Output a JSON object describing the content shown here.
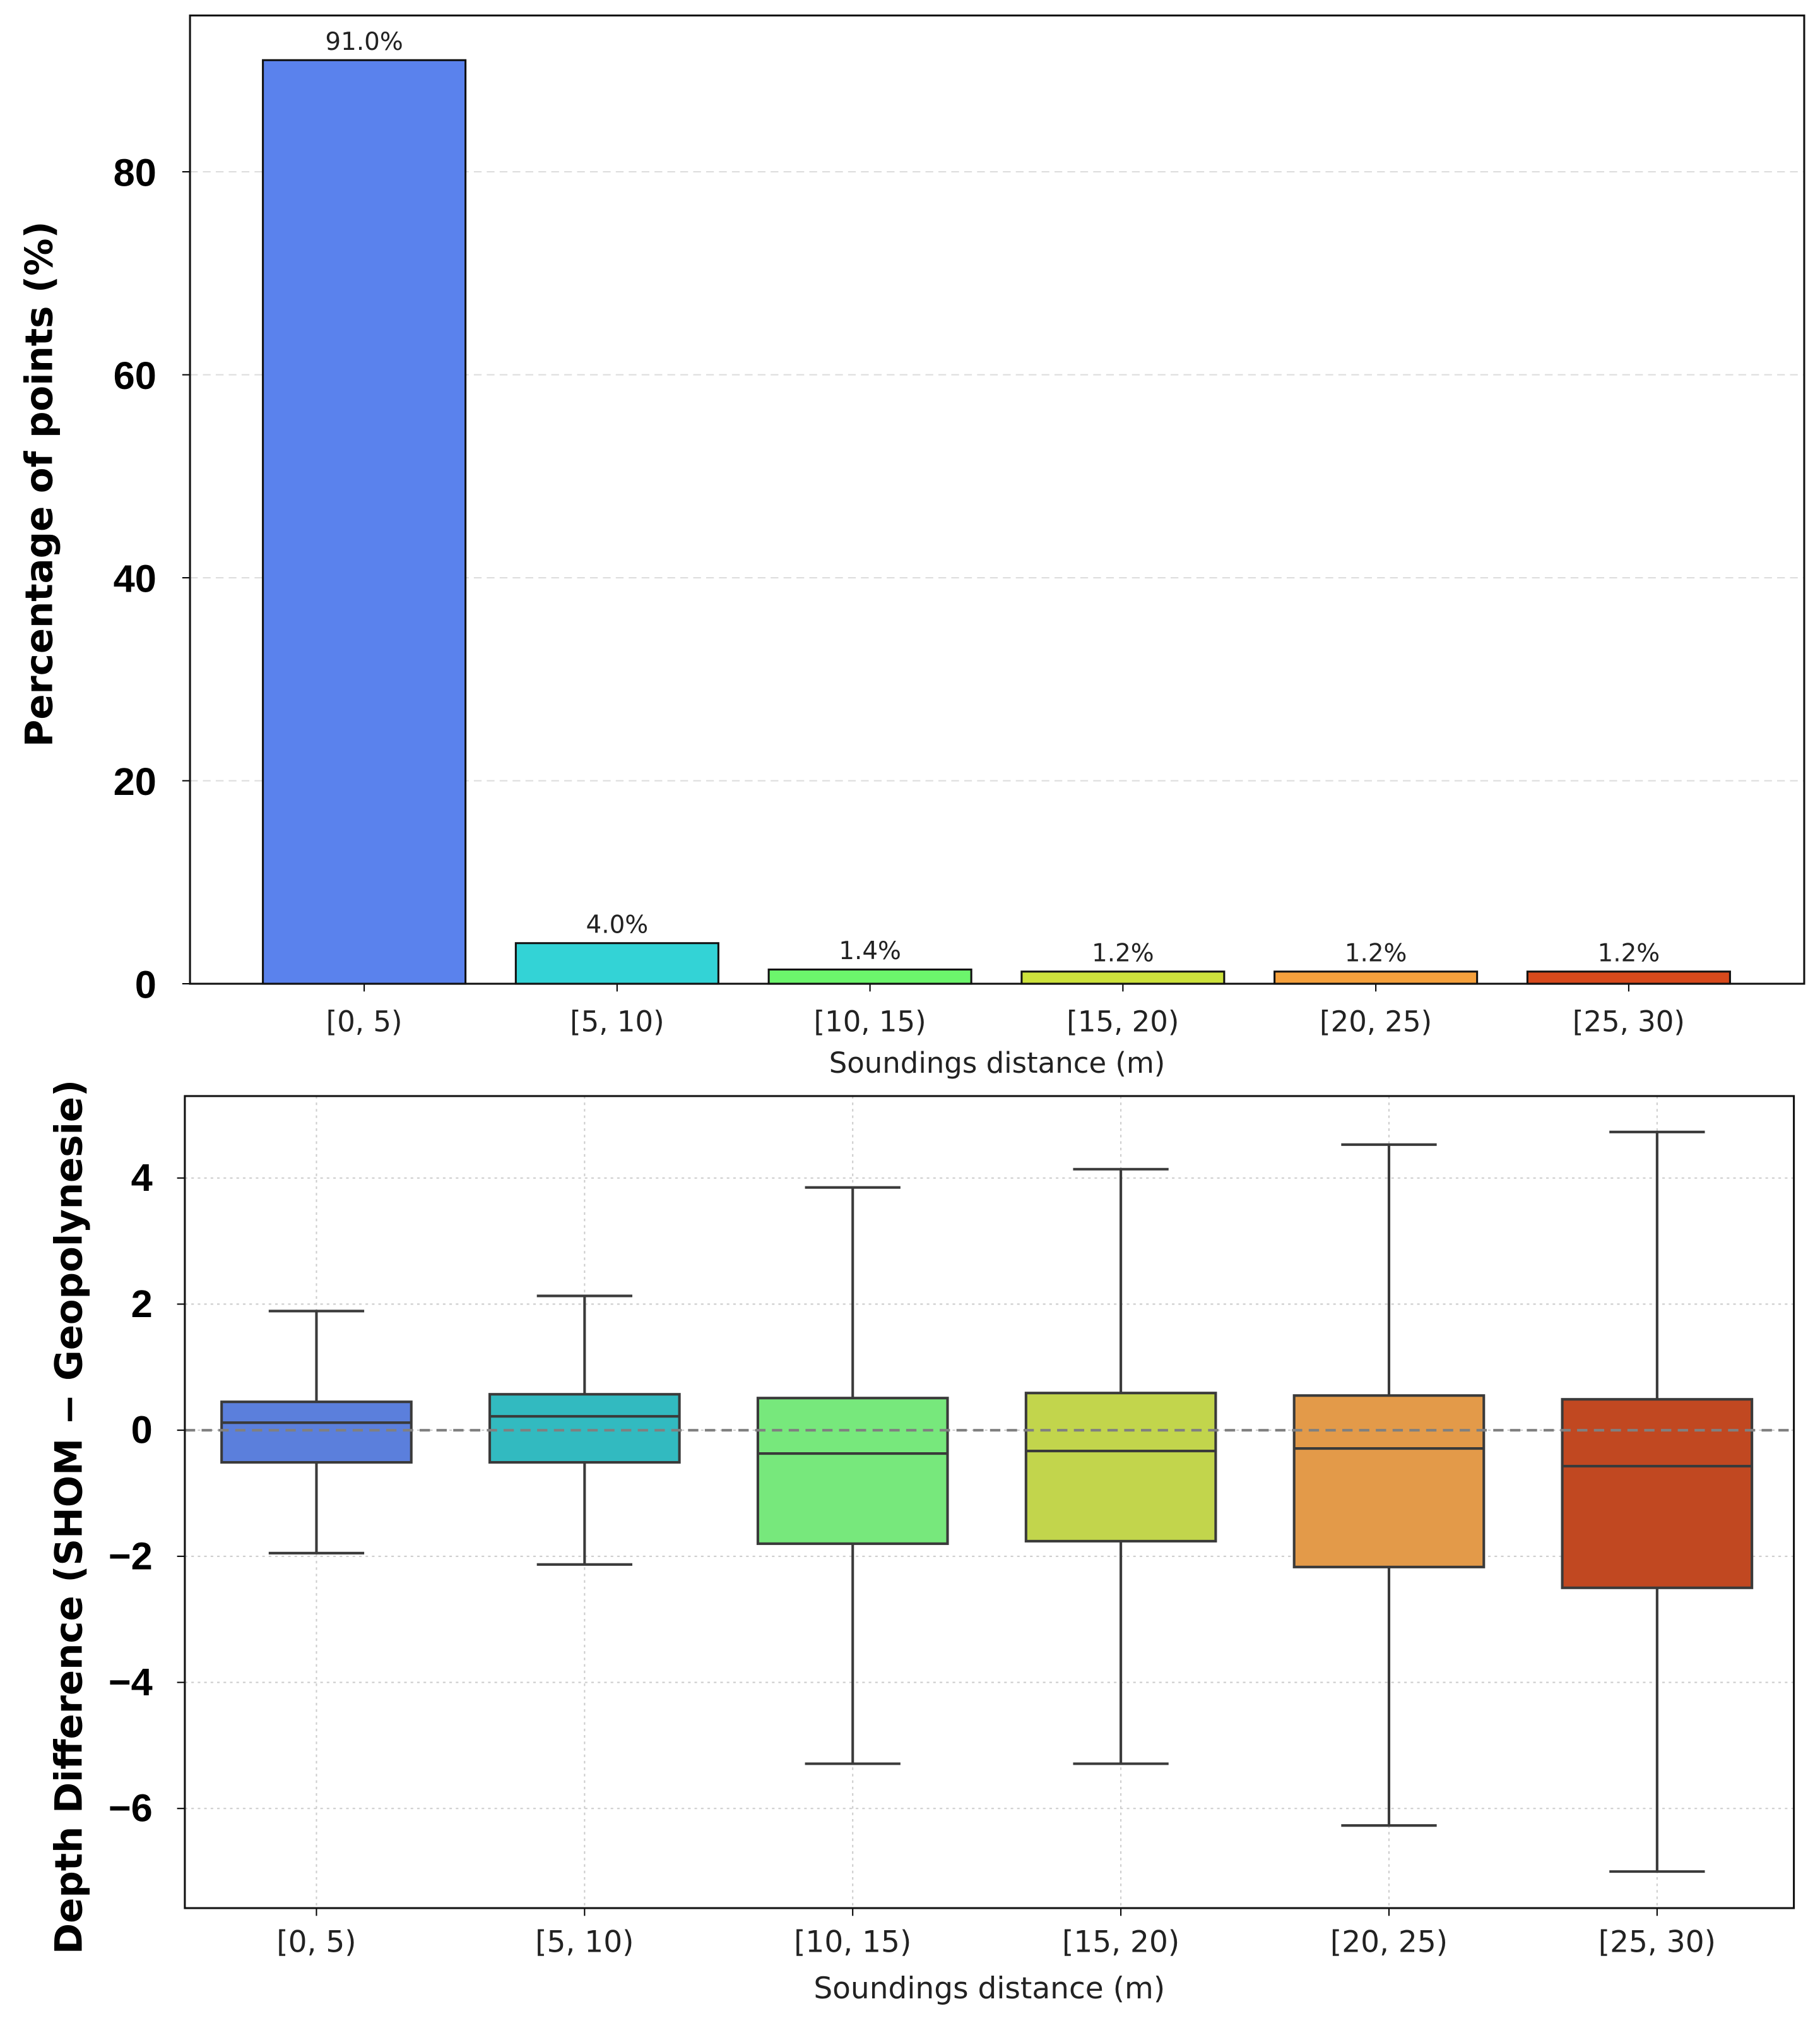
{
  "chart_data": [
    {
      "type": "bar",
      "categories": [
        "[0, 5)",
        "[5, 10)",
        "[10, 15)",
        "[15, 20)",
        "[20, 25)",
        "[25, 30)"
      ],
      "values": [
        91.0,
        4.0,
        1.4,
        1.2,
        1.2,
        1.2
      ],
      "data_labels": [
        "91.0%",
        "4.0%",
        "1.4%",
        "1.2%",
        "1.2%",
        "1.2%"
      ],
      "colors": [
        "#5a82ed",
        "#33d3d6",
        "#6cf56c",
        "#cde23c",
        "#f5a03c",
        "#d84a1c"
      ],
      "xlabel": "Soundings distance (m)",
      "ylabel": "Percentage of  points (%)",
      "ylim": [
        0,
        95.4
      ],
      "yticks": [
        0,
        20,
        40,
        60,
        80
      ],
      "grid": "horizontal dashed"
    },
    {
      "type": "box",
      "categories": [
        "[0, 5)",
        "[5, 10)",
        "[10, 15)",
        "[15, 20)",
        "[20, 25)",
        "[25, 30)"
      ],
      "boxes": [
        {
          "whisker_low": -1.95,
          "q1": -0.51,
          "median": 0.12,
          "q3": 0.45,
          "whisker_high": 1.89
        },
        {
          "whisker_low": -2.13,
          "q1": -0.51,
          "median": 0.22,
          "q3": 0.57,
          "whisker_high": 2.13
        },
        {
          "whisker_low": -5.29,
          "q1": -1.8,
          "median": -0.37,
          "q3": 0.51,
          "whisker_high": 3.85
        },
        {
          "whisker_low": -5.29,
          "q1": -1.76,
          "median": -0.33,
          "q3": 0.59,
          "whisker_high": 4.14
        },
        {
          "whisker_low": -6.27,
          "q1": -2.17,
          "median": -0.29,
          "q3": 0.55,
          "whisker_high": 4.53
        },
        {
          "whisker_low": -7.0,
          "q1": -2.5,
          "median": -0.57,
          "q3": 0.49,
          "whisker_high": 4.73
        }
      ],
      "colors": [
        "#5b7fdc",
        "#32bac0",
        "#77e87c",
        "#c2d54c",
        "#e39a49",
        "#c14821"
      ],
      "xlabel": "Soundings distance (m)",
      "ylabel": "Depth Difference (SHOM − Geopolynesie)",
      "ylim": [
        -7.58,
        5.3
      ],
      "yticks": [
        -6,
        -4,
        -2,
        0,
        2,
        4
      ],
      "ytick_labels": [
        "−6",
        "−4",
        "−2",
        "0",
        "2",
        "4"
      ],
      "reference_line": 0,
      "grid": "both dotted"
    }
  ]
}
